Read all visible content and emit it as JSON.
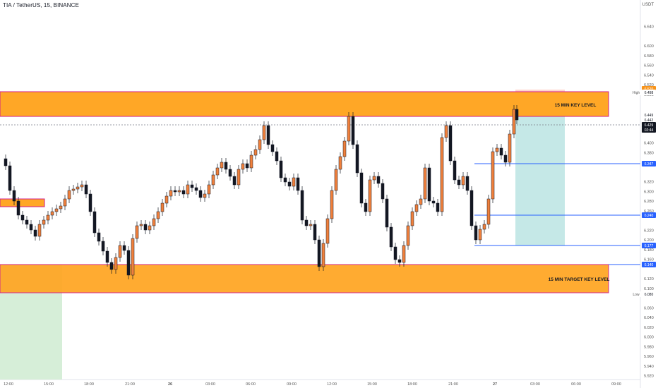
{
  "header": {
    "symbol_title": "TIA / TetherUS, 15, BINANCE",
    "currency": "USDT"
  },
  "zones": {
    "top_label": "15 MIN KEY LEVEL",
    "bottom_label": "15 MIN TARGET KEY LEVEL"
  },
  "axis": {
    "ticks": [
      "6.640",
      "6.600",
      "6.580",
      "6.560",
      "6.540",
      "6.520",
      "6.500",
      "6.460",
      "6.400",
      "6.380",
      "6.360",
      "6.320",
      "6.300",
      "6.280",
      "6.260",
      "6.220",
      "6.200",
      "6.180",
      "6.160",
      "6.120",
      "6.100",
      "6.060",
      "6.040",
      "6.020",
      "6.000",
      "5.980",
      "5.960",
      "5.940",
      "5.920"
    ],
    "badges": [
      {
        "text": "6.520",
        "bg": "#f7931a",
        "fg": "#ffffff"
      },
      {
        "text": "High",
        "bg": "#ffffff",
        "fg": "#555555"
      },
      {
        "text": "6.498",
        "bg": "#ffffff",
        "fg": "#131722"
      },
      {
        "text": "6.449",
        "bg": "#ffffff",
        "fg": "#131722"
      },
      {
        "text": "6.442",
        "bg": "#ffffff",
        "fg": "#131722"
      },
      {
        "text": "6.429",
        "bg": "#131722",
        "fg": "#ffffff"
      },
      {
        "text": "02:44",
        "bg": "#131722",
        "fg": "#ffffff"
      },
      {
        "text": "6.347",
        "bg": "#2962ff",
        "fg": "#ffffff"
      },
      {
        "text": "6.240",
        "bg": "#2962ff",
        "fg": "#ffffff"
      },
      {
        "text": "6.177",
        "bg": "#2962ff",
        "fg": "#ffffff"
      },
      {
        "text": "6.140",
        "bg": "#2962ff",
        "fg": "#ffffff"
      },
      {
        "text": "Low",
        "bg": "#ffffff",
        "fg": "#555555"
      },
      {
        "text": "6.080",
        "bg": "#ffffff",
        "fg": "#131722"
      }
    ],
    "time_labels": [
      "12:00",
      "15:00",
      "18:00",
      "21:00",
      "26",
      "03:00",
      "06:00",
      "09:00",
      "12:00",
      "15:00",
      "18:00",
      "21:00",
      "27",
      "03:00",
      "06:00",
      "09:00"
    ]
  },
  "colors": {
    "candle": "#131722",
    "zone_fill": "#ffa726",
    "zone_border": "#d01c8b",
    "level_line": "#2962ff",
    "target_fill": "#b2e0df",
    "stop_fill": "#ffb74d"
  }
}
